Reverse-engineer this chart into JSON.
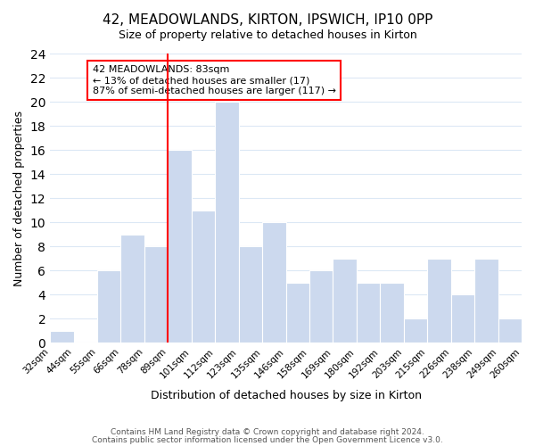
{
  "title": "42, MEADOWLANDS, KIRTON, IPSWICH, IP10 0PP",
  "subtitle": "Size of property relative to detached houses in Kirton",
  "xlabel": "Distribution of detached houses by size in Kirton",
  "ylabel": "Number of detached properties",
  "footer_lines": [
    "Contains HM Land Registry data © Crown copyright and database right 2024.",
    "Contains public sector information licensed under the Open Government Licence v3.0."
  ],
  "bin_edges": [
    "32sqm",
    "44sqm",
    "55sqm",
    "66sqm",
    "78sqm",
    "89sqm",
    "101sqm",
    "112sqm",
    "123sqm",
    "135sqm",
    "146sqm",
    "158sqm",
    "169sqm",
    "180sqm",
    "192sqm",
    "203sqm",
    "215sqm",
    "226sqm",
    "238sqm",
    "249sqm",
    "260sqm"
  ],
  "bar_values": [
    1,
    0,
    6,
    9,
    8,
    16,
    11,
    20,
    8,
    10,
    5,
    6,
    7,
    5,
    5,
    2,
    7,
    4,
    7,
    2
  ],
  "bar_color": "#ccd9ee",
  "ylim": [
    0,
    24
  ],
  "yticks": [
    0,
    2,
    4,
    6,
    8,
    10,
    12,
    14,
    16,
    18,
    20,
    22,
    24
  ],
  "property_label": "42 MEADOWLANDS: 83sqm",
  "annotation_line1": "← 13% of detached houses are smaller (17)",
  "annotation_line2": "87% of semi-detached houses are larger (117) →",
  "vline_x": 4.5,
  "grid_color": "#dce8f5",
  "background_color": "#ffffff"
}
